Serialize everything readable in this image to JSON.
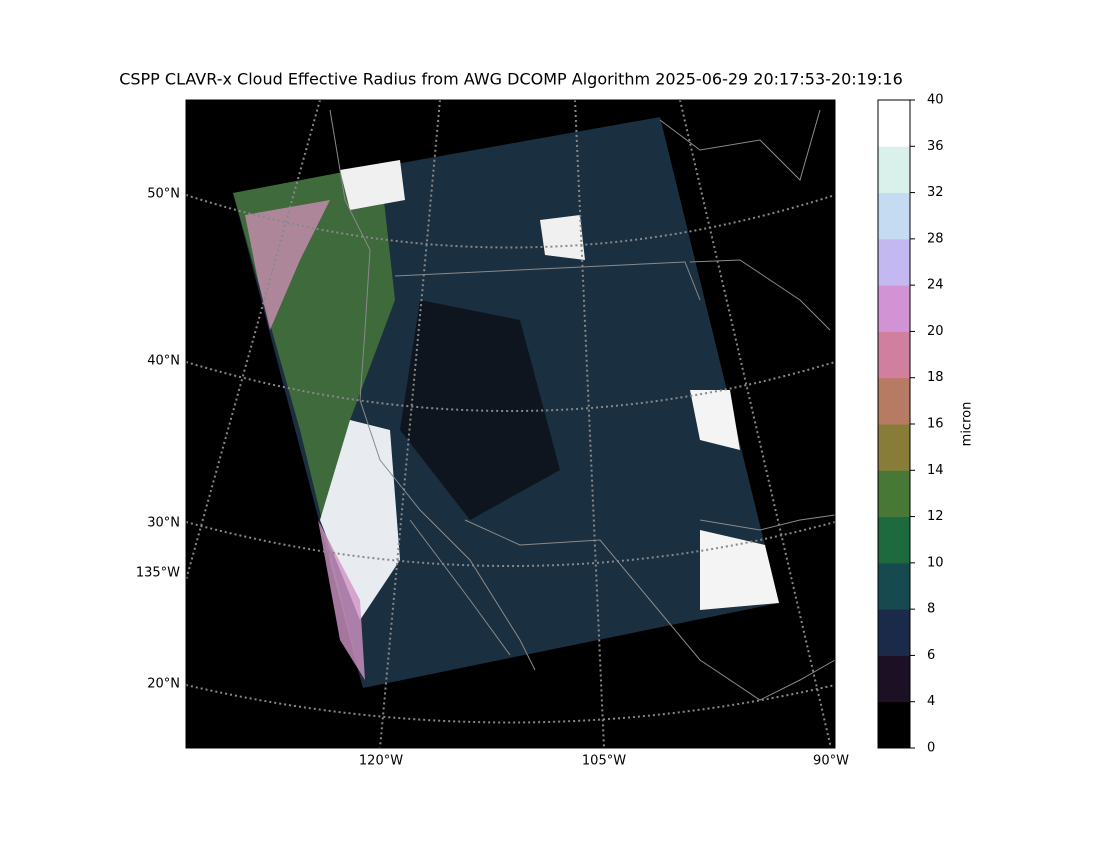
{
  "title": "CSPP CLAVR-x Cloud Effective Radius from AWG DCOMP Algorithm 2025-06-29 20:17:53-20:19:16",
  "lat_labels": [
    "50°N",
    "40°N",
    "30°N",
    "135°W",
    "20°N"
  ],
  "lon_labels": [
    "120°W",
    "105°W",
    "90°W"
  ],
  "colorbar": {
    "label": "micron",
    "boundaries": [
      0,
      4,
      6,
      8,
      10,
      12,
      14,
      16,
      18,
      20,
      24,
      28,
      32,
      36,
      40
    ],
    "colors": [
      "#000000",
      "#1b1024",
      "#1c2a4a",
      "#174a4e",
      "#1d6a3f",
      "#487835",
      "#877c38",
      "#b77a62",
      "#d17f9f",
      "#d293d4",
      "#c3b8ef",
      "#c5dbf2",
      "#daf1eb",
      "#ffffff"
    ]
  }
}
